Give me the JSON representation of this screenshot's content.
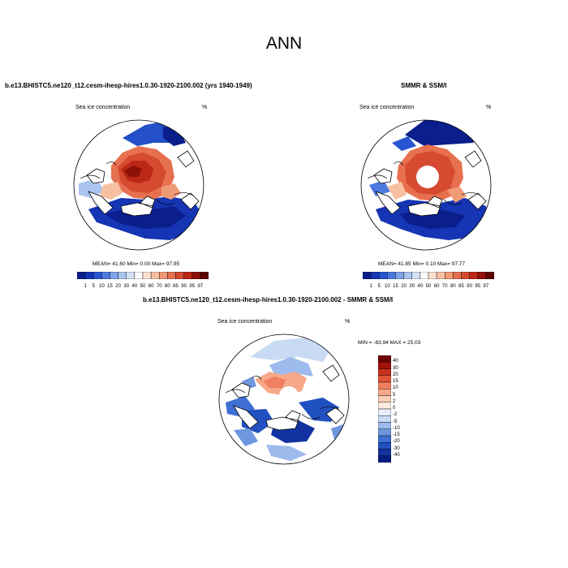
{
  "main_title": "ANN",
  "panels": [
    {
      "id": "model",
      "title": "b.e13.BHISTC5.ne120_t12.cesm-ihesp-hires1.0.30-1920-2100.002 (yrs 1940-1949)",
      "subtitle_left": "Sea ice concentration",
      "subtitle_right": "%",
      "stats": "MEAN=  41.60  Min=   0.00  Max=  97.95"
    },
    {
      "id": "obs",
      "title": "SMMR & SSM/I",
      "subtitle_left": "Sea ice concentration",
      "subtitle_right": "%",
      "stats": "MEAN=  41.85  Min=   0.10  Max=  97.77"
    },
    {
      "id": "diff",
      "title": "b.e13.BHISTC5.ne120_t12.cesm-ihesp-hires1.0.30-1920-2100.002 - SMMR & SSM/I",
      "subtitle_left": "Sea ice concentration",
      "subtitle_right": "%",
      "stats": "MIN = -83.94  MAX =  25.03"
    }
  ],
  "colorbar_concentration": {
    "labels": [
      "1",
      "5",
      "10",
      "15",
      "20",
      "30",
      "40",
      "50",
      "60",
      "70",
      "80",
      "85",
      "90",
      "95",
      "97"
    ],
    "colors": [
      "#0a1e8c",
      "#1535b5",
      "#2856d2",
      "#4a7ae0",
      "#7fa3ea",
      "#aac4f0",
      "#d4e2f8",
      "#ffffff",
      "#fbe0d2",
      "#f7c0a2",
      "#f19a76",
      "#e6704f",
      "#d54a30",
      "#bb2816",
      "#8e0f08",
      "#5e0000"
    ]
  },
  "colorbar_difference": {
    "labels": [
      "40",
      "30",
      "20",
      "15",
      "10",
      "5",
      "2",
      "0",
      "-2",
      "-5",
      "-10",
      "-15",
      "-20",
      "-30",
      "-40"
    ],
    "colors": [
      "#6b0000",
      "#a11208",
      "#c8301c",
      "#e0553a",
      "#f08060",
      "#f7a888",
      "#fbcdb6",
      "#fdebe0",
      "#e6eefa",
      "#c8daf4",
      "#9dbbec",
      "#6e97e0",
      "#3f6fd3",
      "#2150c0",
      "#1132a0",
      "#061c80"
    ]
  }
}
